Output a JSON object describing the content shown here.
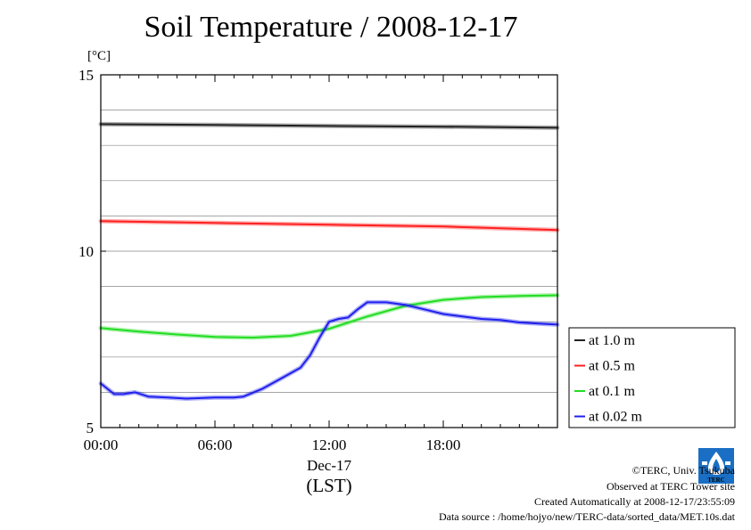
{
  "chart_data": {
    "type": "line",
    "title": "Soil Temperature / 2008-12-17",
    "ylabel": "[°C]",
    "xlabel": "(LST)",
    "date_label": "Dec-17",
    "ylim": [
      5,
      15
    ],
    "xlim_hours": [
      0,
      24
    ],
    "y_ticks": [
      "5",
      "10",
      "15"
    ],
    "x_ticks": [
      {
        "h": 0,
        "label": "00:00"
      },
      {
        "h": 6,
        "label": "06:00"
      },
      {
        "h": 12,
        "label": "12:00"
      },
      {
        "h": 18,
        "label": "18:00"
      }
    ],
    "grid": true,
    "legend_position": "right",
    "series": [
      {
        "name": "at 1.0 m",
        "color": "#222222",
        "x": [
          0,
          6,
          12,
          18,
          24
        ],
        "y": [
          13.6,
          13.58,
          13.55,
          13.53,
          13.5
        ]
      },
      {
        "name": "at 0.5 m",
        "color": "#ff2020",
        "x": [
          0,
          6,
          12,
          18,
          24
        ],
        "y": [
          10.85,
          10.8,
          10.75,
          10.7,
          10.6
        ]
      },
      {
        "name": "at 0.1 m",
        "color": "#22dd22",
        "x": [
          0,
          2,
          4,
          6,
          8,
          10,
          12,
          14,
          16,
          18,
          20,
          22,
          24
        ],
        "y": [
          7.82,
          7.72,
          7.64,
          7.57,
          7.55,
          7.6,
          7.8,
          8.15,
          8.45,
          8.62,
          8.7,
          8.73,
          8.75
        ]
      },
      {
        "name": "at 0.02 m",
        "color": "#2020ee",
        "x": [
          0,
          0.7,
          1.2,
          1.8,
          2.5,
          3.5,
          4.5,
          6,
          7,
          7.5,
          8.5,
          9.5,
          10.5,
          11,
          11.5,
          12,
          12.5,
          13,
          13.5,
          14,
          15,
          16,
          17,
          18,
          19,
          20,
          21,
          22,
          23,
          24
        ],
        "y": [
          6.25,
          5.95,
          5.95,
          6.0,
          5.88,
          5.85,
          5.82,
          5.85,
          5.85,
          5.88,
          6.1,
          6.4,
          6.7,
          7.05,
          7.55,
          8.0,
          8.08,
          8.12,
          8.35,
          8.55,
          8.55,
          8.48,
          8.35,
          8.22,
          8.15,
          8.08,
          8.05,
          7.98,
          7.95,
          7.92
        ]
      }
    ]
  },
  "footer": {
    "copyright": "©TERC, Univ. Tsukuba",
    "observed": "Observed at TERC Tower site",
    "created": "Created Automatically at 2008-12-17/23:55:09",
    "source": "Data source : /home/hojyo/new/TERC-data/sorted_data/MET.10s.dat",
    "logo_text": "TERC"
  }
}
